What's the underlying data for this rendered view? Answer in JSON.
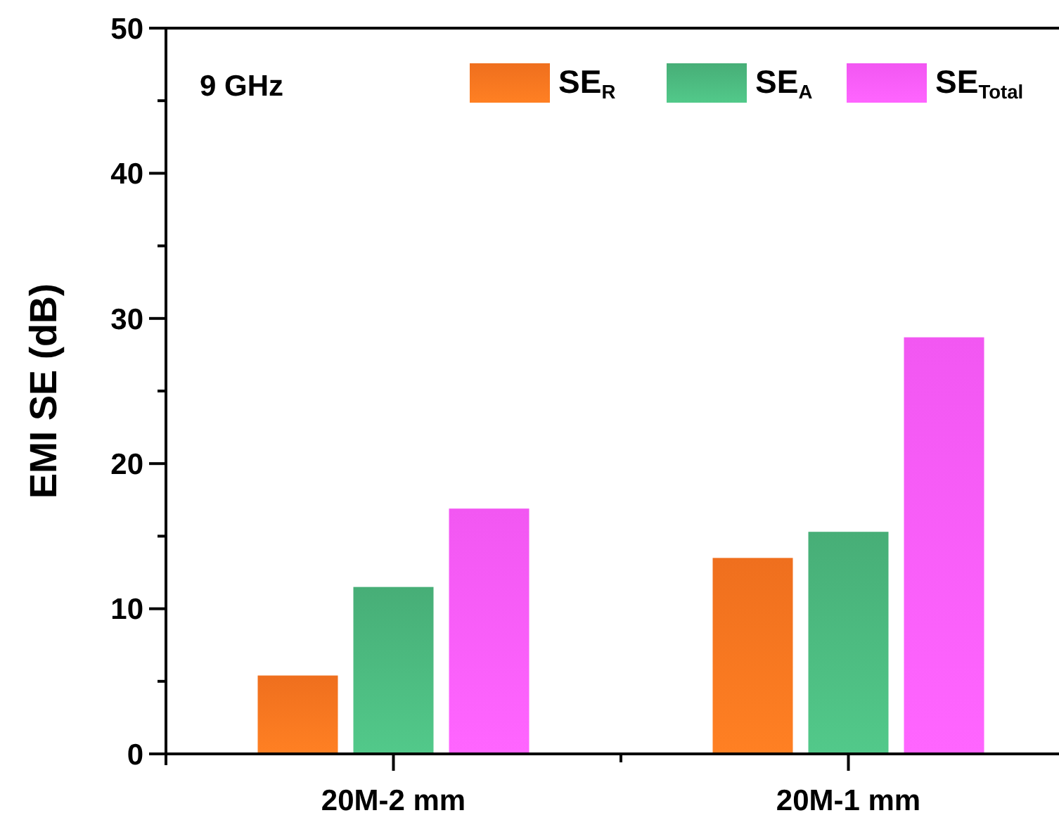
{
  "chart_data": {
    "type": "bar",
    "ylabel": "EMI SE (dB)",
    "categories": [
      "20M-2 mm",
      "20M-1 mm"
    ],
    "series": [
      {
        "name": "SE$_{R}$",
        "color": "#fc7520",
        "values": [
          5.4,
          13.5
        ]
      },
      {
        "name": "SE$_{A}$",
        "color": "#4bb87e",
        "values": [
          11.5,
          15.3
        ]
      },
      {
        "name": "SE$_{Total}$",
        "color": "#ff5cff",
        "values": [
          16.9,
          28.7
        ]
      }
    ],
    "ylim": [
      0,
      50
    ],
    "yticks": [
      0,
      {
        "value": 5,
        "label": null
      },
      10,
      {
        "value": 15,
        "label": null
      },
      20,
      {
        "value": 25,
        "label": null
      },
      30,
      {
        "value": 35,
        "label": null
      },
      40,
      {
        "value": 45,
        "label": null
      },
      50
    ],
    "annotations": [
      "9 GHz"
    ],
    "legend": "top right",
    "grid": false
  }
}
